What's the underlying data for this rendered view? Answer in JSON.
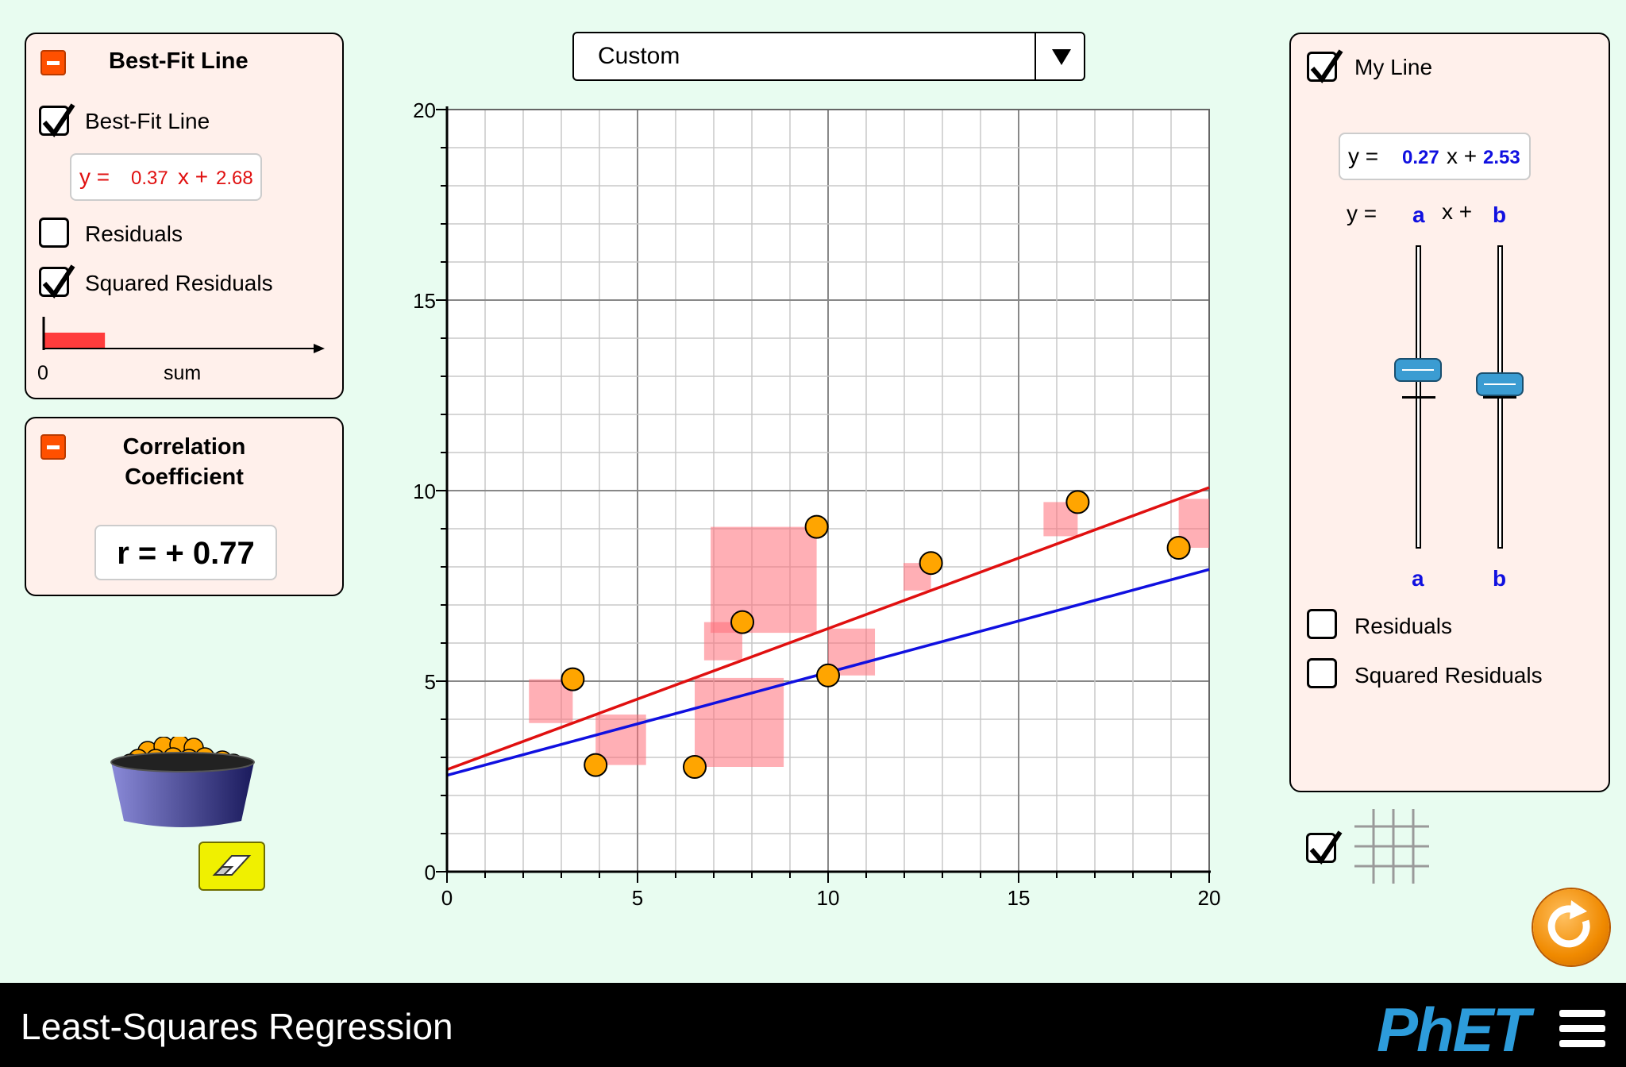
{
  "best_fit_panel": {
    "title": "Best-Fit Line",
    "best_fit_checkbox": {
      "label": "Best-Fit Line",
      "checked": true
    },
    "equation": {
      "prefix": "y =",
      "slope": "0.37",
      "x_plus": "x +",
      "intercept": "2.68"
    },
    "residuals_checkbox": {
      "label": "Residuals",
      "checked": false
    },
    "squared_residuals_checkbox": {
      "label": "Squared Residuals",
      "checked": true
    },
    "sum_bar": {
      "zero_label": "0",
      "sum_label": "sum",
      "level": 0.28
    }
  },
  "correlation_panel": {
    "title_line1": "Correlation",
    "title_line2": "Coefficient",
    "value": "r = + 0.77"
  },
  "dataset_combo": {
    "selected": "Custom"
  },
  "my_line_panel": {
    "my_line_checkbox": {
      "label": "My Line",
      "checked": true
    },
    "equation": {
      "prefix": "y =",
      "slope": "0.27",
      "x_plus": "x +",
      "intercept": "2.53"
    },
    "slider_header": {
      "prefix": "y =",
      "a": "a",
      "x_plus": "x +",
      "b": "b"
    },
    "slider_a_label": "a",
    "slider_b_label": "b",
    "residuals_checkbox": {
      "label": "Residuals",
      "checked": false
    },
    "squared_residuals_checkbox": {
      "label": "Squared Residuals",
      "checked": false
    }
  },
  "grid_checkbox": {
    "checked": true
  },
  "chart_data": {
    "type": "scatter",
    "xlim": [
      0,
      20
    ],
    "ylim": [
      0,
      20
    ],
    "x_ticks": [
      "0",
      "5",
      "10",
      "15",
      "20"
    ],
    "y_ticks": [
      "0",
      "5",
      "10",
      "15",
      "20"
    ],
    "grid": true,
    "points": [
      {
        "x": 3.3,
        "y": 5.05
      },
      {
        "x": 3.9,
        "y": 2.8
      },
      {
        "x": 6.5,
        "y": 2.75
      },
      {
        "x": 7.75,
        "y": 6.55
      },
      {
        "x": 9.7,
        "y": 9.05
      },
      {
        "x": 10.0,
        "y": 5.15
      },
      {
        "x": 12.7,
        "y": 8.1
      },
      {
        "x": 16.55,
        "y": 9.7
      },
      {
        "x": 19.2,
        "y": 8.5
      }
    ],
    "best_fit_line": {
      "slope": 0.37,
      "intercept": 2.68,
      "color": "#e01010"
    },
    "my_line": {
      "slope": 0.27,
      "intercept": 2.53,
      "color": "#1010e0"
    },
    "squared_residual_color": "#ff6e78"
  },
  "colors": {
    "point_fill": "#ffa500",
    "panel_bg": "#fff0eb",
    "page_bg": "#e8fcf0"
  },
  "navbar": {
    "title": "Least-Squares Regression",
    "logo": "PhET"
  }
}
